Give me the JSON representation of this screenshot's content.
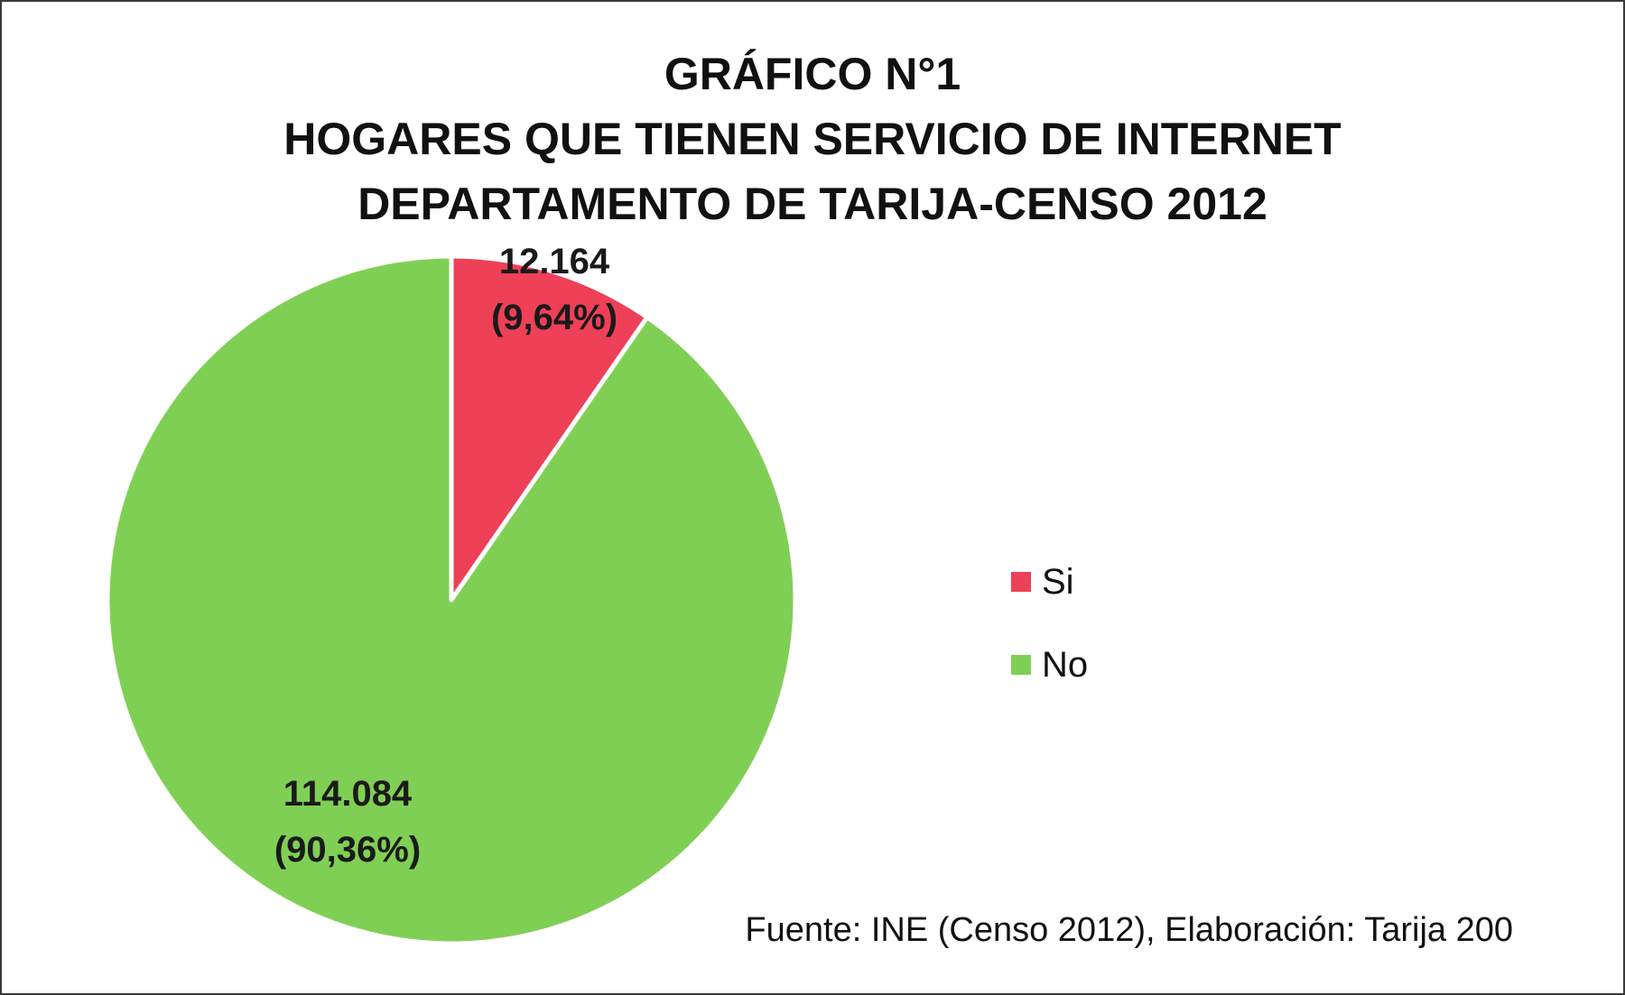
{
  "title_lines": [
    "GRÁFICO N°1",
    "HOGARES QUE TIENEN SERVICIO DE INTERNET",
    "DEPARTAMENTO DE TARIJA-CENSO 2012"
  ],
  "source": "Fuente: INE (Censo 2012), Elaboración: Tarija 200",
  "chart_data": {
    "type": "pie",
    "title": "GRÁFICO N°1 HOGARES QUE TIENEN SERVICIO DE INTERNET DEPARTAMENTO DE TARIJA-CENSO 2012",
    "categories": [
      "Si",
      "No"
    ],
    "values": [
      12164,
      114084
    ],
    "percentages": [
      9.64,
      90.36
    ],
    "data_labels": [
      {
        "value_text": "12.164",
        "percent_text": "(9,64%)"
      },
      {
        "value_text": "114.084",
        "percent_text": "(90,36%)"
      }
    ],
    "colors": [
      "#ee4057",
      "#80cf55"
    ],
    "legend_position": "right"
  }
}
